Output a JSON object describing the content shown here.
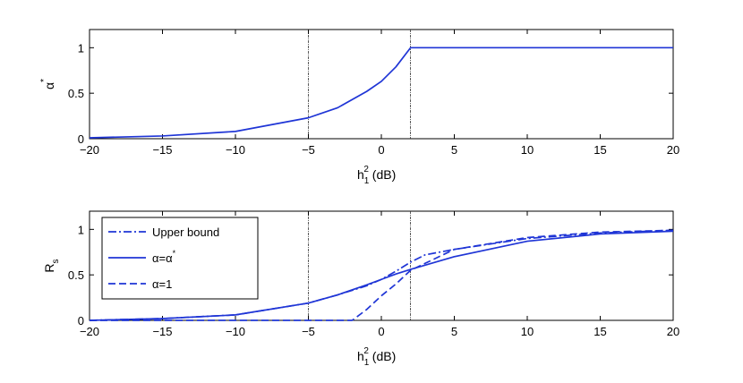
{
  "chart_data": [
    {
      "type": "line",
      "xlim": [
        -20,
        20
      ],
      "ylim": [
        0,
        1.2
      ],
      "xticks": [
        -20,
        -15,
        -10,
        -5,
        0,
        5,
        10,
        15,
        20
      ],
      "yticks": [
        0,
        0.5,
        1
      ],
      "xtick_labels": [
        "−20",
        "−15",
        "−10",
        "−5",
        "0",
        "5",
        "10",
        "15",
        "20"
      ],
      "ytick_labels": [
        "0",
        "0.5",
        "1"
      ],
      "xlabel": {
        "base": "h",
        "sub": "1",
        "sup": "2",
        "rest": " (dB)"
      },
      "ylabel": {
        "base": "α",
        "sup": "*"
      },
      "grid": false,
      "vlines": [
        -5,
        2
      ],
      "series": [
        {
          "style": "solid",
          "x": [
            -20,
            -15,
            -10,
            -5,
            -3,
            -1,
            0,
            1,
            2,
            5,
            10,
            15,
            20
          ],
          "y": [
            0.01,
            0.03,
            0.08,
            0.23,
            0.34,
            0.52,
            0.63,
            0.79,
            1.0,
            1.0,
            1.0,
            1.0,
            1.0
          ]
        }
      ]
    },
    {
      "type": "line",
      "xlim": [
        -20,
        20
      ],
      "ylim": [
        0,
        1.2
      ],
      "xticks": [
        -20,
        -15,
        -10,
        -5,
        0,
        5,
        10,
        15,
        20
      ],
      "yticks": [
        0,
        0.5,
        1
      ],
      "xtick_labels": [
        "−20",
        "−15",
        "−10",
        "−5",
        "0",
        "5",
        "10",
        "15",
        "20"
      ],
      "ytick_labels": [
        "0",
        "0.5",
        "1"
      ],
      "xlabel": {
        "base": "h",
        "sub": "1",
        "sup": "2",
        "rest": " (dB)"
      },
      "ylabel": {
        "base": "R",
        "sub": "s"
      },
      "grid": false,
      "vlines": [
        -5,
        2
      ],
      "legend_position": "top-left",
      "series": [
        {
          "name": "Upper bound",
          "style": "dashdot",
          "x": [
            -20,
            -15,
            -10,
            -5,
            -3,
            -1,
            0,
            1,
            2,
            3,
            5,
            10,
            15,
            20
          ],
          "y": [
            0.0,
            0.02,
            0.06,
            0.19,
            0.28,
            0.38,
            0.45,
            0.54,
            0.64,
            0.72,
            0.78,
            0.9,
            0.96,
            0.99
          ]
        },
        {
          "name": "α=α*",
          "style": "solid",
          "x": [
            -20,
            -15,
            -10,
            -5,
            -3,
            -1,
            0,
            1,
            2,
            5,
            10,
            15,
            20
          ],
          "y": [
            0.0,
            0.02,
            0.06,
            0.19,
            0.28,
            0.39,
            0.45,
            0.51,
            0.56,
            0.7,
            0.87,
            0.95,
            0.98
          ]
        },
        {
          "name": "α=1",
          "style": "dashed",
          "x": [
            -20,
            -10,
            -5,
            -2,
            -1,
            0,
            1,
            2,
            5,
            10,
            15,
            20
          ],
          "y": [
            0.0,
            0.0,
            0.0,
            0.0,
            0.12,
            0.27,
            0.4,
            0.55,
            0.78,
            0.91,
            0.97,
            0.99
          ]
        }
      ]
    }
  ]
}
